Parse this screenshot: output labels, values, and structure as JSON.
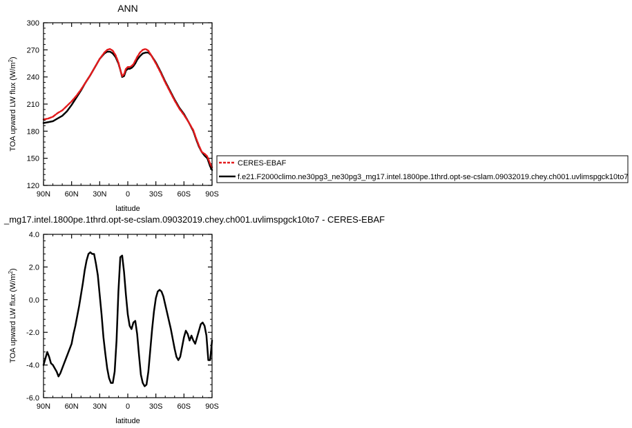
{
  "chart_data": [
    {
      "type": "line",
      "title": "ANN",
      "xlabel": "latitude",
      "ylabel_main": "TOA upward LW flux (W/m",
      "ylabel_sup": "2",
      "ylabel_tail": ")",
      "xlim": [
        90,
        -90
      ],
      "ylim": [
        120,
        300
      ],
      "x_ticks": [
        90,
        60,
        30,
        0,
        -30,
        -60,
        -90
      ],
      "x_tick_labels": [
        "90N",
        "60N",
        "30N",
        "0",
        "30S",
        "60S",
        "90S"
      ],
      "y_ticks": [
        120,
        150,
        180,
        210,
        240,
        270,
        300
      ],
      "y_tick_labels": [
        "120",
        "150",
        "180",
        "210",
        "240",
        "270",
        "300"
      ],
      "legend_position": "right",
      "series": [
        {
          "name": "CERES-EBAF",
          "color": "#e31a1c",
          "dash": true,
          "x": [
            90,
            85,
            80,
            75,
            70,
            65,
            60,
            55,
            50,
            45,
            40,
            35,
            30,
            25,
            22,
            19,
            16,
            13,
            10,
            8,
            6,
            4,
            2,
            0,
            -2,
            -4,
            -6,
            -8,
            -10,
            -13,
            -16,
            -19,
            -22,
            -25,
            -30,
            -35,
            -40,
            -45,
            -50,
            -55,
            -60,
            -65,
            -70,
            -73,
            -76,
            -79,
            -82,
            -85,
            -88,
            -90
          ],
          "y": [
            193,
            194,
            196,
            200,
            203,
            208,
            213,
            219,
            226,
            234,
            242,
            251,
            260,
            267,
            270,
            271,
            269,
            264,
            256,
            248,
            241,
            243,
            249,
            251,
            251,
            252,
            254,
            258,
            262,
            267,
            270,
            271,
            269,
            264,
            255,
            245,
            234,
            224,
            214,
            205,
            198,
            190,
            181,
            172,
            164,
            157,
            155,
            152,
            144,
            140
          ]
        },
        {
          "name": "f.e21.F2000climo.ne30pg3_ne30pg3_mg17.intel.1800pe.1thrd.opt-se-cslam.09032019.chey.ch001.uvlimspgck10to7",
          "color": "#000000",
          "dash": false,
          "x": [
            90,
            85,
            80,
            75,
            70,
            65,
            60,
            55,
            50,
            45,
            40,
            35,
            30,
            25,
            22,
            19,
            16,
            13,
            10,
            8,
            6,
            4,
            2,
            0,
            -2,
            -4,
            -6,
            -8,
            -10,
            -13,
            -16,
            -19,
            -22,
            -25,
            -30,
            -35,
            -40,
            -45,
            -50,
            -55,
            -60,
            -65,
            -70,
            -73,
            -76,
            -79,
            -82,
            -85,
            -88,
            -90
          ],
          "y": [
            189,
            190,
            191,
            194,
            197,
            202,
            209,
            217,
            225,
            234,
            242,
            251,
            260,
            266,
            268,
            268,
            266,
            262,
            255,
            248,
            240,
            241,
            247,
            249,
            249,
            250,
            252,
            255,
            259,
            263,
            266,
            267,
            267,
            264,
            256,
            246,
            235,
            225,
            215,
            206,
            199,
            190,
            180,
            171,
            163,
            157,
            153,
            150,
            141,
            137
          ]
        }
      ]
    },
    {
      "type": "line",
      "title": "_mg17.intel.1800pe.1thrd.opt-se-cslam.09032019.chey.ch001.uvlimspgck10to7 - CERES-EBAF",
      "xlabel": "latitude",
      "ylabel_main": "TOA upward LW flux (W/m",
      "ylabel_sup": "2",
      "ylabel_tail": ")",
      "xlim": [
        90,
        -90
      ],
      "ylim": [
        -6.0,
        4.0
      ],
      "x_ticks": [
        90,
        60,
        30,
        0,
        -30,
        -60,
        -90
      ],
      "x_tick_labels": [
        "90N",
        "60N",
        "30N",
        "0",
        "30S",
        "60S",
        "90S"
      ],
      "y_ticks": [
        -6,
        -4,
        -2,
        0,
        2,
        4
      ],
      "y_tick_labels": [
        "-6.0",
        "-4.0",
        "-2.0",
        "0.0",
        "2.0",
        "4.0"
      ],
      "series": [
        {
          "color": "#000000",
          "dash": false,
          "x": [
            90,
            88,
            86,
            84,
            82,
            80,
            78,
            76,
            74,
            72,
            70,
            68,
            66,
            64,
            62,
            60,
            58,
            56,
            54,
            52,
            50,
            48,
            46,
            44,
            42,
            40,
            38,
            36,
            34,
            32,
            30,
            28,
            26,
            24,
            22,
            20,
            18,
            16,
            14,
            12,
            10,
            8,
            6,
            4,
            2,
            0,
            -2,
            -4,
            -6,
            -8,
            -10,
            -12,
            -14,
            -16,
            -18,
            -20,
            -22,
            -24,
            -26,
            -28,
            -30,
            -32,
            -34,
            -36,
            -38,
            -40,
            -42,
            -44,
            -46,
            -48,
            -50,
            -52,
            -54,
            -56,
            -58,
            -60,
            -62,
            -64,
            -66,
            -68,
            -70,
            -72,
            -74,
            -76,
            -78,
            -80,
            -82,
            -84,
            -86,
            -88,
            -90
          ],
          "y": [
            -4.0,
            -3.6,
            -3.2,
            -3.5,
            -3.9,
            -4.0,
            -4.2,
            -4.4,
            -4.7,
            -4.5,
            -4.2,
            -3.9,
            -3.6,
            -3.3,
            -3.0,
            -2.7,
            -2.1,
            -1.6,
            -1.0,
            -0.4,
            0.3,
            1.0,
            1.8,
            2.4,
            2.8,
            2.9,
            2.8,
            2.8,
            2.2,
            1.5,
            0.3,
            -0.9,
            -2.3,
            -3.3,
            -4.2,
            -4.8,
            -5.1,
            -5.1,
            -4.4,
            -2.5,
            0.5,
            2.6,
            2.7,
            1.7,
            0.3,
            -0.9,
            -1.6,
            -1.8,
            -1.4,
            -1.3,
            -2.1,
            -3.4,
            -4.6,
            -5.1,
            -5.3,
            -5.2,
            -4.4,
            -3.1,
            -1.8,
            -0.7,
            0.1,
            0.5,
            0.6,
            0.5,
            0.2,
            -0.3,
            -0.8,
            -1.3,
            -1.8,
            -2.4,
            -3.0,
            -3.5,
            -3.7,
            -3.5,
            -2.9,
            -2.3,
            -1.9,
            -2.1,
            -2.5,
            -2.2,
            -2.5,
            -2.7,
            -2.3,
            -1.9,
            -1.5,
            -1.4,
            -1.6,
            -2.2,
            -3.7,
            -3.7,
            -2.5
          ]
        }
      ]
    }
  ]
}
